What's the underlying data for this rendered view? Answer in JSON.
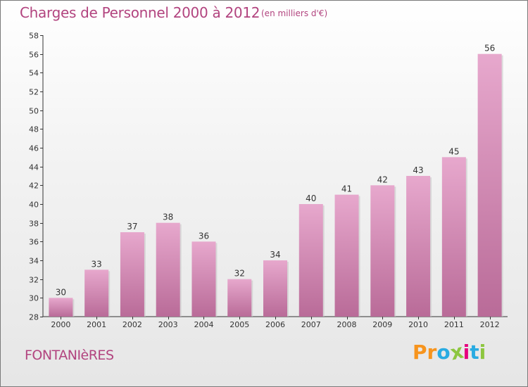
{
  "title": "Charges de Personnel 2000 à 2012",
  "unit_note": "(en milliers d'€)",
  "place": "FONTANIèRES",
  "logo": {
    "letters": [
      "P",
      "r",
      "o",
      "x",
      "i",
      "t",
      "i"
    ],
    "colors": [
      "#f7941d",
      "#f7941d",
      "#29abe2",
      "#8dc63f",
      "#e6007e",
      "#29abe2",
      "#8dc63f"
    ]
  },
  "colors": {
    "accent": "#b2447f",
    "bar_top": "#e7a8cd",
    "bar_bottom": "#b96b98"
  },
  "chart_data": {
    "type": "bar",
    "categories": [
      "2000",
      "2001",
      "2002",
      "2003",
      "2004",
      "2005",
      "2006",
      "2007",
      "2008",
      "2009",
      "2010",
      "2011",
      "2012"
    ],
    "values": [
      30,
      33,
      37,
      38,
      36,
      32,
      34,
      40,
      41,
      42,
      43,
      45,
      56
    ],
    "title": "Charges de Personnel 2000 à 2012",
    "xlabel": "",
    "ylabel": "",
    "ylim": [
      28,
      58
    ],
    "yticks": [
      28,
      30,
      32,
      34,
      36,
      38,
      40,
      42,
      44,
      46,
      48,
      50,
      52,
      54,
      56,
      58
    ],
    "grid": false,
    "data_labels": true
  }
}
